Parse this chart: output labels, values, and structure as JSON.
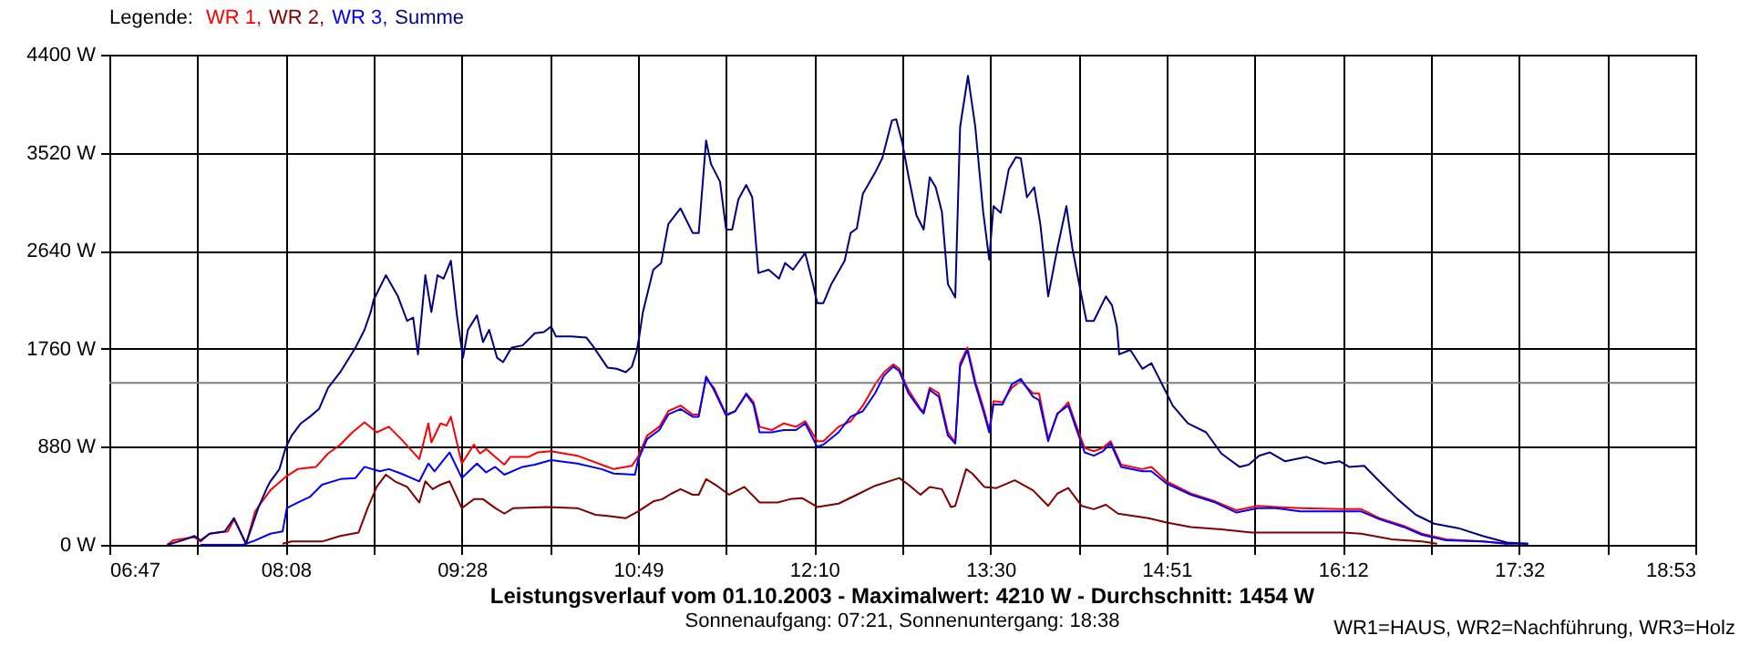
{
  "chart_data": {
    "type": "line",
    "title": "Leistungsverlauf vom 01.10.2003 - Maximalwert: 4210 W - Durchschnitt: 1454 W",
    "subtitle": "Sonnenaufgang: 07:21, Sonnenuntergang: 18:38",
    "annotations": [
      "WR1=HAUS, WR2=Nachführung, WR3=Holz"
    ],
    "legend_title": "Legende:",
    "grid": true,
    "xlim": [
      6.7833,
      18.8833
    ],
    "xticks": [
      {
        "value": 6.7833,
        "label": "06:47"
      },
      {
        "value": 7.4556,
        "label": null
      },
      {
        "value": 8.1278,
        "label": "08:08"
      },
      {
        "value": 8.8,
        "label": null
      },
      {
        "value": 9.4722,
        "label": "09:28"
      },
      {
        "value": 10.1444,
        "label": null
      },
      {
        "value": 10.8167,
        "label": "10:49"
      },
      {
        "value": 11.4889,
        "label": null
      },
      {
        "value": 12.1611,
        "label": "12:10"
      },
      {
        "value": 12.8333,
        "label": null
      },
      {
        "value": 13.5056,
        "label": "13:30"
      },
      {
        "value": 14.1778,
        "label": null
      },
      {
        "value": 14.85,
        "label": "14:51"
      },
      {
        "value": 15.5222,
        "label": null
      },
      {
        "value": 16.1944,
        "label": "16:12"
      },
      {
        "value": 16.8667,
        "label": null
      },
      {
        "value": 17.5389,
        "label": "17:32"
      },
      {
        "value": 18.2111,
        "label": null
      },
      {
        "value": 18.8833,
        "label": "18:53"
      }
    ],
    "ylim": [
      0,
      4400
    ],
    "yticks": [
      {
        "value": 0,
        "label": "0 W"
      },
      {
        "value": 880,
        "label": "880 W"
      },
      {
        "value": 1760,
        "label": "1760 W"
      },
      {
        "value": 2640,
        "label": "2640 W"
      },
      {
        "value": 3520,
        "label": "3520 W"
      },
      {
        "value": 4400,
        "label": "4400 W"
      }
    ],
    "ref_lines": [
      {
        "axis": "y",
        "value": 1454,
        "color": "#808080"
      }
    ],
    "series": [
      {
        "name": "WR 1,",
        "color": "#ff0000",
        "x": [
          7.224,
          7.27,
          7.432,
          7.479,
          7.548,
          7.687,
          7.734,
          7.826,
          7.896,
          7.942,
          8.012,
          8.128,
          8.22,
          8.36,
          8.452,
          8.545,
          8.638,
          8.73,
          8.823,
          8.916,
          9.009,
          9.148,
          9.217,
          9.24,
          9.31,
          9.356,
          9.389,
          9.472,
          9.565,
          9.611,
          9.658,
          9.727,
          9.797,
          9.843,
          9.982,
          10.052,
          10.154,
          10.353,
          10.538,
          10.631,
          10.77,
          10.817,
          10.886,
          10.979,
          11.048,
          11.141,
          11.234,
          11.28,
          11.336,
          11.396,
          11.489,
          11.558,
          11.642,
          11.698,
          11.744,
          11.836,
          11.929,
          12.022,
          12.092,
          12.184,
          12.231,
          12.347,
          12.439,
          12.532,
          12.625,
          12.694,
          12.764,
          12.81,
          12.88,
          12.972,
          12.996,
          13.042,
          13.112,
          13.181,
          13.237,
          13.274,
          13.329,
          13.39,
          13.459,
          13.496,
          13.529,
          13.598,
          13.668,
          13.737,
          13.83,
          13.876,
          13.946,
          14.016,
          14.099,
          14.155,
          14.224,
          14.294,
          14.363,
          14.423,
          14.502,
          14.665,
          14.734,
          14.85,
          15.035,
          15.221,
          15.383,
          15.545,
          15.684,
          15.87,
          16.194,
          16.334,
          16.473,
          16.658,
          16.797,
          16.983,
          17.261,
          17.447
        ],
        "values": [
          0,
          40,
          70,
          30,
          100,
          120,
          230,
          10,
          300,
          380,
          490,
          610,
          680,
          700,
          820,
          900,
          1010,
          1100,
          1010,
          1060,
          950,
          770,
          1090,
          920,
          1090,
          1070,
          1150,
          730,
          900,
          820,
          860,
          790,
          720,
          790,
          790,
          830,
          840,
          800,
          720,
          680,
          710,
          790,
          980,
          1060,
          1200,
          1250,
          1170,
          1170,
          1490,
          1410,
          1170,
          1200,
          1360,
          1280,
          1060,
          1030,
          1090,
          1060,
          1110,
          930,
          930,
          1060,
          1110,
          1250,
          1440,
          1550,
          1620,
          1580,
          1390,
          1220,
          1200,
          1410,
          1360,
          1010,
          920,
          1630,
          1770,
          1470,
          1200,
          1030,
          1290,
          1280,
          1410,
          1470,
          1360,
          1360,
          950,
          1170,
          1280,
          1090,
          870,
          840,
          870,
          930,
          720,
          680,
          700,
          570,
          460,
          390,
          310,
          350,
          340,
          330,
          320,
          320,
          240,
          170,
          100,
          50,
          30,
          10
        ]
      },
      {
        "name": "WR 2,",
        "color": "#800000",
        "x": [
          8.105,
          8.174,
          8.406,
          8.545,
          8.684,
          8.754,
          8.823,
          8.893,
          8.962,
          9.055,
          9.148,
          9.194,
          9.25,
          9.31,
          9.379,
          9.472,
          9.565,
          9.634,
          9.727,
          9.797,
          9.866,
          10.121,
          10.353,
          10.492,
          10.585,
          10.724,
          10.817,
          10.933,
          11.002,
          11.072,
          11.141,
          11.234,
          11.28,
          11.336,
          11.419,
          11.512,
          11.628,
          11.744,
          11.883,
          11.976,
          12.068,
          12.184,
          12.347,
          12.486,
          12.625,
          12.81,
          12.88,
          12.972,
          13.042,
          13.135,
          13.204,
          13.237,
          13.32,
          13.367,
          13.459,
          13.552,
          13.691,
          13.83,
          13.946,
          14.016,
          14.099,
          14.201,
          14.294,
          14.386,
          14.479,
          14.711,
          14.85,
          15.035,
          15.267,
          15.499,
          15.87,
          16.194,
          16.334,
          16.565,
          16.797,
          16.913
        ],
        "values": [
          10,
          30,
          30,
          80,
          110,
          330,
          520,
          630,
          570,
          520,
          380,
          570,
          500,
          540,
          570,
          330,
          410,
          410,
          330,
          280,
          330,
          340,
          330,
          270,
          260,
          240,
          300,
          390,
          410,
          460,
          500,
          450,
          450,
          590,
          530,
          450,
          520,
          380,
          380,
          410,
          420,
          340,
          370,
          450,
          530,
          600,
          540,
          450,
          520,
          500,
          340,
          350,
          680,
          640,
          520,
          510,
          580,
          490,
          350,
          460,
          510,
          350,
          320,
          360,
          280,
          240,
          200,
          160,
          140,
          110,
          110,
          110,
          100,
          50,
          30,
          10
        ]
      },
      {
        "name": "WR 3,",
        "color": "#0000ff",
        "x": [
          7.479,
          7.803,
          7.896,
          8.012,
          8.105,
          8.137,
          8.22,
          8.313,
          8.406,
          8.545,
          8.661,
          8.73,
          8.846,
          8.916,
          9.009,
          9.148,
          9.217,
          9.264,
          9.379,
          9.472,
          9.588,
          9.658,
          9.727,
          9.797,
          9.936,
          10.029,
          10.154,
          10.353,
          10.538,
          10.631,
          10.793,
          10.817,
          10.886,
          10.979,
          11.048,
          11.141,
          11.234,
          11.28,
          11.336,
          11.396,
          11.489,
          11.558,
          11.642,
          11.698,
          11.744,
          11.836,
          11.929,
          12.022,
          12.092,
          12.184,
          12.231,
          12.347,
          12.439,
          12.532,
          12.625,
          12.694,
          12.764,
          12.81,
          12.88,
          12.972,
          12.996,
          13.042,
          13.112,
          13.181,
          13.237,
          13.274,
          13.329,
          13.39,
          13.459,
          13.496,
          13.529,
          13.598,
          13.668,
          13.737,
          13.83,
          13.876,
          13.946,
          14.016,
          14.099,
          14.155,
          14.224,
          14.294,
          14.363,
          14.423,
          14.502,
          14.665,
          14.734,
          14.85,
          15.035,
          15.221,
          15.383,
          15.545,
          15.684,
          15.87,
          16.194,
          16.334,
          16.473,
          16.658,
          16.797,
          16.983,
          17.261,
          17.447,
          17.608
        ],
        "values": [
          0,
          0,
          40,
          100,
          120,
          330,
          380,
          430,
          540,
          590,
          600,
          700,
          660,
          680,
          640,
          570,
          730,
          660,
          830,
          600,
          730,
          650,
          700,
          630,
          700,
          720,
          760,
          730,
          680,
          640,
          630,
          760,
          950,
          1030,
          1170,
          1220,
          1150,
          1150,
          1510,
          1390,
          1160,
          1200,
          1350,
          1260,
          1010,
          1010,
          1030,
          1030,
          1090,
          880,
          900,
          1010,
          1150,
          1200,
          1360,
          1520,
          1600,
          1560,
          1360,
          1210,
          1180,
          1390,
          1330,
          980,
          910,
          1600,
          1750,
          1440,
          1170,
          1010,
          1260,
          1260,
          1440,
          1490,
          1330,
          1300,
          930,
          1180,
          1250,
          1060,
          830,
          800,
          840,
          910,
          700,
          660,
          660,
          550,
          450,
          380,
          290,
          330,
          330,
          300,
          300,
          300,
          230,
          160,
          90,
          40,
          30,
          10,
          10
        ]
      },
      {
        "name": "Summe",
        "color": "#000080",
        "x": [
          7.224,
          7.34,
          7.432,
          7.479,
          7.548,
          7.664,
          7.734,
          7.826,
          7.919,
          7.989,
          8.012,
          8.081,
          8.128,
          8.174,
          8.244,
          8.313,
          8.383,
          8.452,
          8.545,
          8.661,
          8.73,
          8.777,
          8.8,
          8.893,
          8.985,
          9.055,
          9.101,
          9.138,
          9.194,
          9.24,
          9.287,
          9.333,
          9.389,
          9.435,
          9.481,
          9.519,
          9.588,
          9.634,
          9.681,
          9.741,
          9.787,
          9.852,
          9.936,
          10.029,
          10.098,
          10.154,
          10.191,
          10.307,
          10.423,
          10.469,
          10.585,
          10.654,
          10.724,
          10.77,
          10.807,
          10.826,
          10.854,
          10.933,
          10.993,
          11.048,
          11.141,
          11.234,
          11.28,
          11.336,
          11.373,
          11.442,
          11.489,
          11.535,
          11.582,
          11.642,
          11.688,
          11.735,
          11.813,
          11.892,
          11.939,
          11.999,
          12.092,
          12.152,
          12.184,
          12.231,
          12.291,
          12.393,
          12.439,
          12.486,
          12.532,
          12.625,
          12.68,
          12.754,
          12.787,
          12.833,
          12.88,
          12.94,
          12.996,
          13.042,
          13.088,
          13.135,
          13.181,
          13.237,
          13.274,
          13.334,
          13.39,
          13.45,
          13.496,
          13.529,
          13.584,
          13.645,
          13.7,
          13.737,
          13.784,
          13.839,
          13.886,
          13.946,
          14.016,
          14.085,
          14.131,
          14.201,
          14.238,
          14.294,
          14.386,
          14.433,
          14.47,
          14.488,
          14.572,
          14.665,
          14.734,
          14.85,
          14.896,
          15.012,
          15.151,
          15.267,
          15.406,
          15.476,
          15.555,
          15.638,
          15.754,
          15.916,
          16.055,
          16.171,
          16.241,
          16.357,
          16.473,
          16.612,
          16.751,
          16.89,
          17.075,
          17.261,
          17.447,
          17.608
        ],
        "values": [
          0,
          40,
          80,
          40,
          100,
          120,
          240,
          10,
          330,
          520,
          570,
          680,
          870,
          980,
          1090,
          1150,
          1220,
          1410,
          1550,
          1770,
          1930,
          2090,
          2200,
          2420,
          2230,
          2010,
          2040,
          1710,
          2420,
          2090,
          2420,
          2390,
          2550,
          2060,
          1680,
          1930,
          2060,
          1820,
          1930,
          1680,
          1640,
          1770,
          1790,
          1900,
          1910,
          1960,
          1870,
          1870,
          1860,
          1790,
          1590,
          1580,
          1550,
          1600,
          1740,
          1870,
          2090,
          2470,
          2530,
          2880,
          3020,
          2800,
          2800,
          3630,
          3420,
          3260,
          2830,
          2830,
          3100,
          3230,
          3120,
          2440,
          2470,
          2390,
          2530,
          2470,
          2620,
          2340,
          2170,
          2170,
          2340,
          2550,
          2800,
          2840,
          3150,
          3340,
          3470,
          3810,
          3820,
          3610,
          3310,
          2960,
          2830,
          3300,
          3210,
          2990,
          2340,
          2220,
          3750,
          4210,
          3750,
          2990,
          2560,
          3040,
          2980,
          3370,
          3480,
          3470,
          3120,
          3210,
          2880,
          2230,
          2660,
          3040,
          2660,
          2230,
          2010,
          2010,
          2230,
          2150,
          1960,
          1710,
          1750,
          1580,
          1630,
          1360,
          1250,
          1090,
          1010,
          820,
          700,
          720,
          800,
          830,
          750,
          790,
          730,
          750,
          700,
          710,
          570,
          410,
          270,
          190,
          150,
          80,
          20,
          10
        ]
      }
    ]
  }
}
